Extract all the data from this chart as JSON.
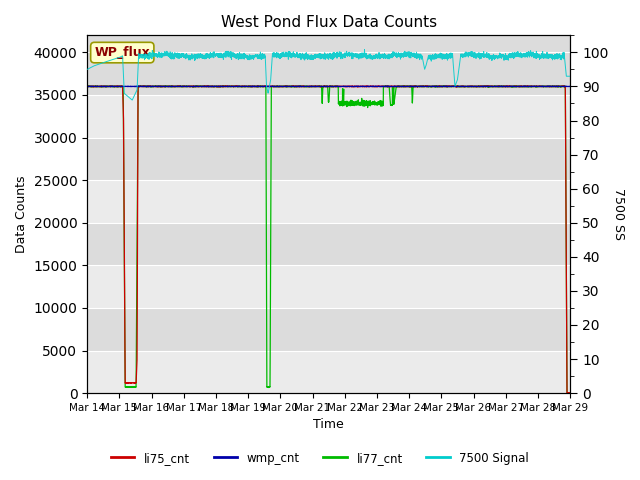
{
  "title": "West Pond Flux Data Counts",
  "xlabel": "Time",
  "ylabel_left": "Data Counts",
  "ylabel_right": "7500 SS",
  "legend_label": "WP_flux",
  "left_ylim": [
    0,
    42000
  ],
  "right_ylim": [
    0,
    105
  ],
  "left_yticks": [
    0,
    5000,
    10000,
    15000,
    20000,
    25000,
    30000,
    35000,
    40000
  ],
  "right_yticks": [
    0,
    10,
    20,
    30,
    40,
    50,
    60,
    70,
    80,
    90,
    100
  ],
  "bg_color": "#dcdcdc",
  "alt_bg_color": "#ebebeb",
  "xtick_labels": [
    "Mar 14",
    "Mar 15",
    "Mar 16",
    "Mar 17",
    "Mar 18",
    "Mar 19",
    "Mar 20",
    "Mar 21",
    "Mar 22",
    "Mar 23",
    "Mar 24",
    "Mar 25",
    "Mar 26",
    "Mar 27",
    "Mar 28",
    "Mar 29"
  ],
  "xtick_positions": [
    0,
    1,
    2,
    3,
    4,
    5,
    6,
    7,
    8,
    9,
    10,
    11,
    12,
    13,
    14,
    15
  ],
  "colors": {
    "li75": "#cc0000",
    "wmp": "#0000aa",
    "li77": "#00bb00",
    "sig": "#00cccc"
  }
}
